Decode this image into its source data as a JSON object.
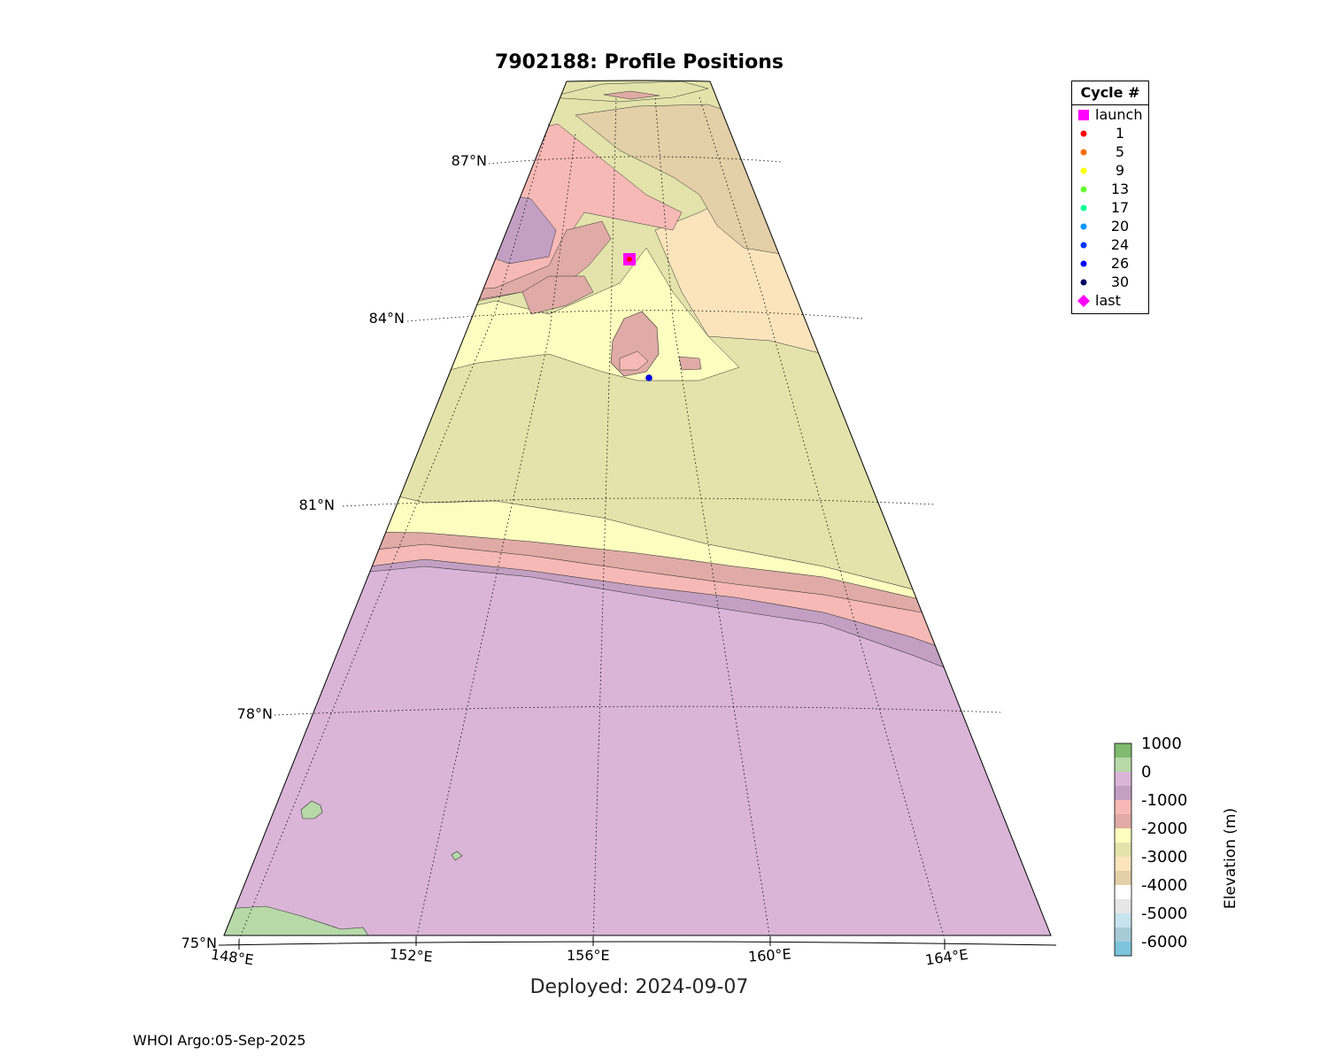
{
  "title": "7902188: Profile Positions",
  "deployed": "Deployed: 2024-09-07",
  "footer": "WHOI Argo:05-Sep-2025",
  "map": {
    "projection": "conic",
    "lat_range": [
      75,
      88.5
    ],
    "lon_range": [
      148,
      166
    ],
    "grid": true,
    "lat_ticks": [
      "87°N",
      "84°N",
      "81°N",
      "78°N",
      "75°N"
    ],
    "lon_ticks": [
      "148°E",
      "152°E",
      "156°E",
      "160°E",
      "164°E"
    ],
    "land_color": "#b7d9a8",
    "ocean_colors": {
      "0_to_-1000": "#dab5d8",
      "-1000_to_-1500": "#c3a0c3",
      "-1500_to_-2000": "#f7b9b5",
      "-2000_to_-2500": "#e0aba6",
      "-2500_to_-3000": "#fdfdbf",
      "-3000_to_-3500": "#e3e3ab",
      "-3500_to_-4000": "#fbe4bc",
      "-4000_to_-4500": "#e3cfa8"
    }
  },
  "legend": {
    "title": "Cycle #",
    "placement": "top-right",
    "items": [
      {
        "label": "launch",
        "color": "#ff00ff",
        "marker": "square"
      },
      {
        "label": "1",
        "color": "#ff0000",
        "marker": "circle"
      },
      {
        "label": "5",
        "color": "#ff6a00",
        "marker": "circle"
      },
      {
        "label": "9",
        "color": "#ffff00",
        "marker": "circle"
      },
      {
        "label": "13",
        "color": "#66ff33",
        "marker": "circle"
      },
      {
        "label": "17",
        "color": "#00ff99",
        "marker": "circle"
      },
      {
        "label": "20",
        "color": "#0099ff",
        "marker": "circle"
      },
      {
        "label": "24",
        "color": "#0033ff",
        "marker": "circle"
      },
      {
        "label": "26",
        "color": "#0000ff",
        "marker": "circle"
      },
      {
        "label": "30",
        "color": "#000066",
        "marker": "circle"
      },
      {
        "label": "last",
        "color": "#ff00ff",
        "marker": "diamond"
      }
    ]
  },
  "colorbar": {
    "label": "Elevation (m)",
    "ticks": [
      "1000",
      "0",
      "-1000",
      "-2000",
      "-3000",
      "-4000",
      "-5000",
      "-6000"
    ],
    "colors": [
      "#7fba6f",
      "#b7d9a8",
      "#dab5d8",
      "#c3a0c3",
      "#f7b9b5",
      "#e0aba6",
      "#fdfdbf",
      "#e3e3ab",
      "#fbe4bc",
      "#e3cfa8",
      "#ffffff",
      "#e6e6e6",
      "#c7e3ee",
      "#a6cbd6",
      "#7cc4db"
    ]
  },
  "markers": {
    "launch": {
      "lat": 85.3,
      "lon": 156.9
    },
    "last": {
      "lat": 85.3,
      "lon": 156.9
    },
    "profile": {
      "lat": 83.4,
      "lon": 157.5,
      "cycle": "26"
    }
  }
}
